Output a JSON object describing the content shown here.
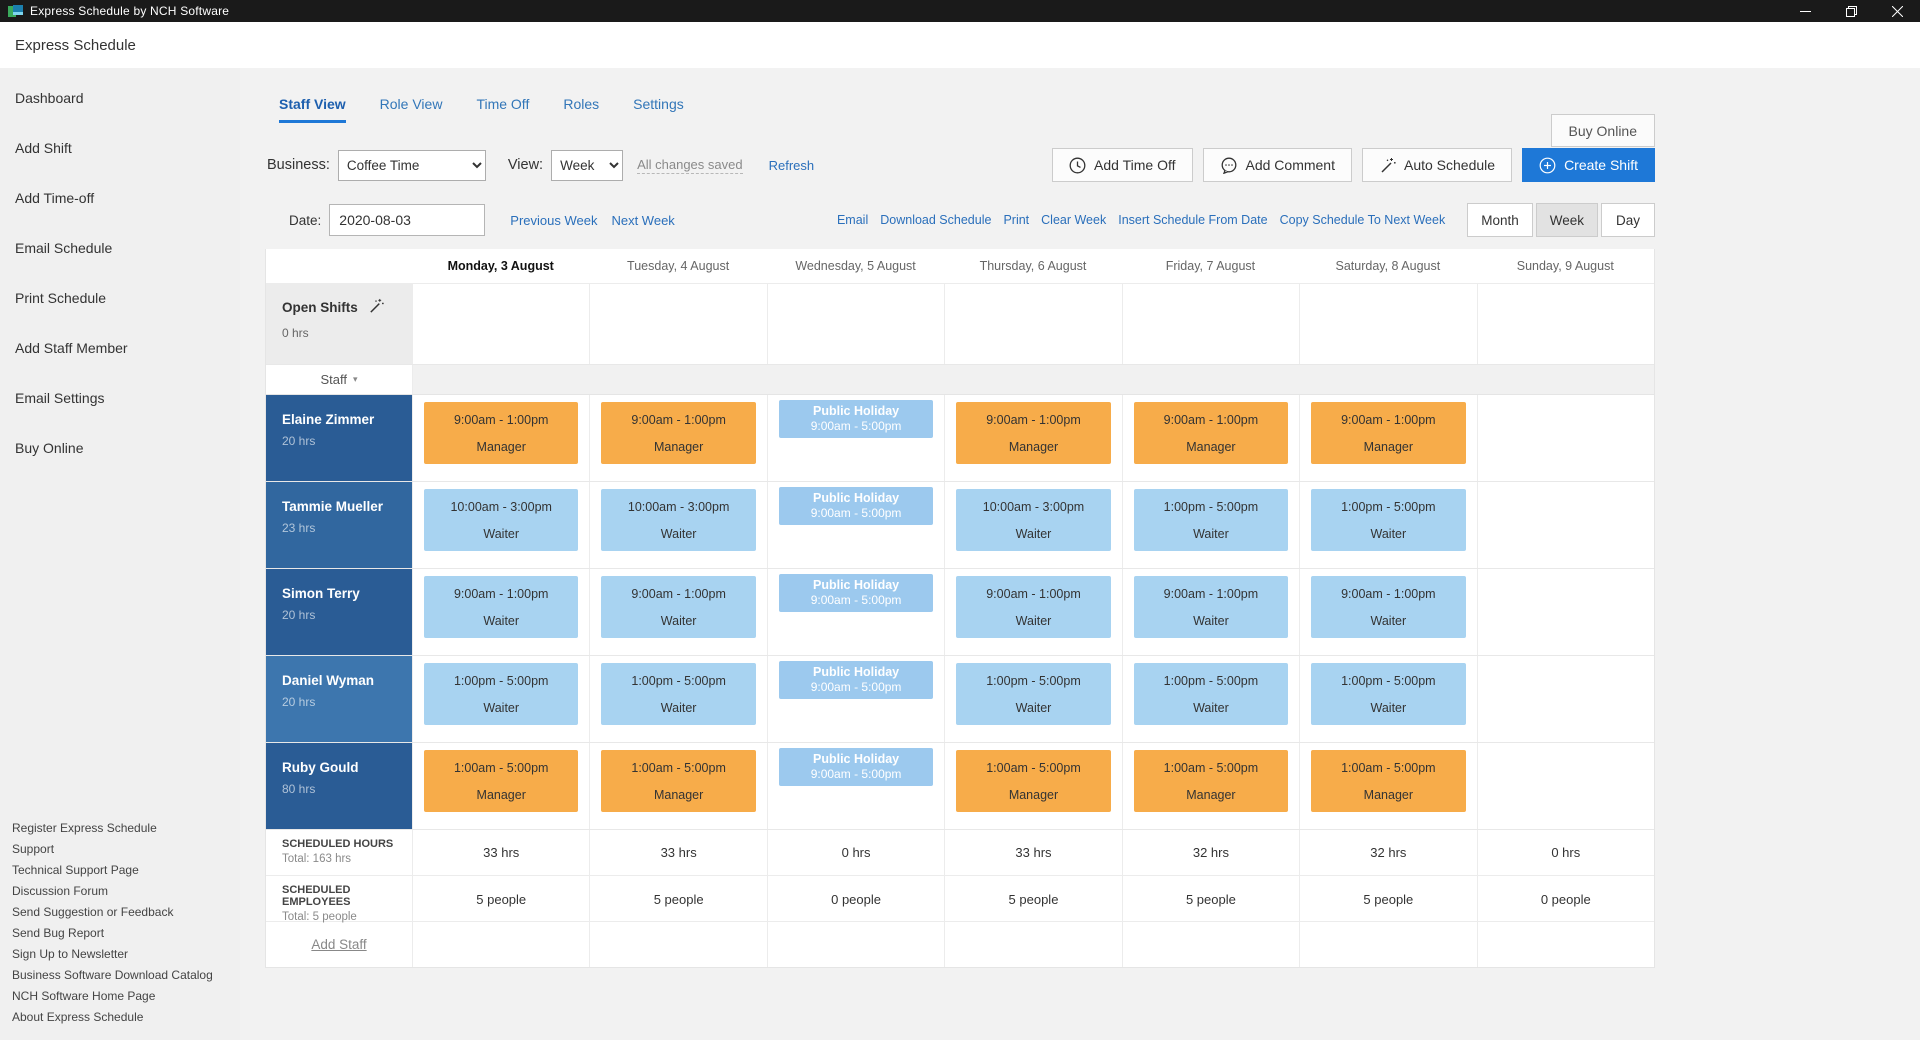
{
  "window": {
    "title": "Express Schedule by NCH Software"
  },
  "app_header": {
    "title": "Express Schedule"
  },
  "sidebar": {
    "items": [
      "Dashboard",
      "Add Shift",
      "Add Time-off",
      "Email Schedule",
      "Print Schedule",
      "Add Staff Member",
      "Email Settings",
      "Buy Online"
    ],
    "footer_links": [
      "Register Express Schedule",
      "Support",
      "Technical Support Page",
      "Discussion Forum",
      "Send Suggestion or Feedback",
      "Send Bug Report",
      "Sign Up to Newsletter",
      "Business Software Download Catalog",
      "NCH Software Home Page",
      "About Express Schedule"
    ]
  },
  "tabs": [
    {
      "label": "Staff View",
      "active": true
    },
    {
      "label": "Role View",
      "active": false
    },
    {
      "label": "Time Off",
      "active": false
    },
    {
      "label": "Roles",
      "active": false
    },
    {
      "label": "Settings",
      "active": false
    }
  ],
  "buy_online_button": "Buy Online",
  "toolbar": {
    "business_label": "Business:",
    "business_value": "Coffee Time",
    "view_label": "View:",
    "view_value": "Week",
    "status_text": "All changes saved",
    "refresh_link": "Refresh",
    "add_time_off": "Add Time Off",
    "add_comment": "Add Comment",
    "auto_schedule": "Auto Schedule",
    "create_shift": "Create Shift"
  },
  "date_bar": {
    "label": "Date:",
    "value": "2020-08-03",
    "prev_link": "Previous Week",
    "next_link": "Next Week",
    "action_links": [
      "Email",
      "Download Schedule",
      "Print",
      "Clear Week",
      "Insert Schedule From Date",
      "Copy Schedule To Next Week"
    ],
    "view_toggle": [
      {
        "label": "Month",
        "active": false
      },
      {
        "label": "Week",
        "active": true
      },
      {
        "label": "Day",
        "active": false
      }
    ]
  },
  "calendar": {
    "day_headers": [
      "Monday, 3 August",
      "Tuesday, 4 August",
      "Wednesday, 5 August",
      "Thursday, 6 August",
      "Friday, 7 August",
      "Saturday, 8 August",
      "Sunday, 9 August"
    ],
    "today_index": 0,
    "open_shifts": {
      "label": "Open Shifts",
      "hours": "0 hrs"
    },
    "staff_header_label": "Staff",
    "staff_rows": [
      {
        "name": "Elaine Zimmer",
        "hours": "20 hrs",
        "color": "#2A5C95",
        "shifts": [
          {
            "type": "manager",
            "time": "9:00am - 1:00pm",
            "role": "Manager"
          },
          {
            "type": "manager",
            "time": "9:00am - 1:00pm",
            "role": "Manager"
          },
          {
            "type": "holiday",
            "title": "Public Holiday",
            "time": "9:00am - 5:00pm"
          },
          {
            "type": "manager",
            "time": "9:00am - 1:00pm",
            "role": "Manager"
          },
          {
            "type": "manager",
            "time": "9:00am - 1:00pm",
            "role": "Manager"
          },
          {
            "type": "manager",
            "time": "9:00am - 1:00pm",
            "role": "Manager"
          },
          null
        ]
      },
      {
        "name": "Tammie Mueller",
        "hours": "23 hrs",
        "color": "#31679F",
        "shifts": [
          {
            "type": "waiter",
            "time": "10:00am - 3:00pm",
            "role": "Waiter"
          },
          {
            "type": "waiter",
            "time": "10:00am - 3:00pm",
            "role": "Waiter"
          },
          {
            "type": "holiday",
            "title": "Public Holiday",
            "time": "9:00am - 5:00pm"
          },
          {
            "type": "waiter",
            "time": "10:00am - 3:00pm",
            "role": "Waiter"
          },
          {
            "type": "waiter",
            "time": "1:00pm - 5:00pm",
            "role": "Waiter"
          },
          {
            "type": "waiter",
            "time": "1:00pm - 5:00pm",
            "role": "Waiter"
          },
          null
        ]
      },
      {
        "name": "Simon Terry",
        "hours": "20 hrs",
        "color": "#2A5C95",
        "shifts": [
          {
            "type": "waiter",
            "time": "9:00am - 1:00pm",
            "role": "Waiter"
          },
          {
            "type": "waiter",
            "time": "9:00am - 1:00pm",
            "role": "Waiter"
          },
          {
            "type": "holiday",
            "title": "Public Holiday",
            "time": "9:00am - 5:00pm"
          },
          {
            "type": "waiter",
            "time": "9:00am - 1:00pm",
            "role": "Waiter"
          },
          {
            "type": "waiter",
            "time": "9:00am - 1:00pm",
            "role": "Waiter"
          },
          {
            "type": "waiter",
            "time": "9:00am - 1:00pm",
            "role": "Waiter"
          },
          null
        ]
      },
      {
        "name": "Daniel Wyman",
        "hours": "20 hrs",
        "color": "#3D76AE",
        "shifts": [
          {
            "type": "waiter",
            "time": "1:00pm - 5:00pm",
            "role": "Waiter"
          },
          {
            "type": "waiter",
            "time": "1:00pm - 5:00pm",
            "role": "Waiter"
          },
          {
            "type": "holiday",
            "title": "Public Holiday",
            "time": "9:00am - 5:00pm"
          },
          {
            "type": "waiter",
            "time": "1:00pm - 5:00pm",
            "role": "Waiter"
          },
          {
            "type": "waiter",
            "time": "1:00pm - 5:00pm",
            "role": "Waiter"
          },
          {
            "type": "waiter",
            "time": "1:00pm - 5:00pm",
            "role": "Waiter"
          },
          null
        ]
      },
      {
        "name": "Ruby Gould",
        "hours": "80 hrs",
        "color": "#2A5C95",
        "shifts": [
          {
            "type": "manager",
            "time": "1:00am - 5:00pm",
            "role": "Manager"
          },
          {
            "type": "manager",
            "time": "1:00am - 5:00pm",
            "role": "Manager"
          },
          {
            "type": "holiday",
            "title": "Public Holiday",
            "time": "9:00am - 5:00pm"
          },
          {
            "type": "manager",
            "time": "1:00am - 5:00pm",
            "role": "Manager"
          },
          {
            "type": "manager",
            "time": "1:00am - 5:00pm",
            "role": "Manager"
          },
          {
            "type": "manager",
            "time": "1:00am - 5:00pm",
            "role": "Manager"
          },
          null
        ]
      }
    ],
    "summary_rows": [
      {
        "label": "SCHEDULED HOURS",
        "total": "Total: 163 hrs",
        "values": [
          "33 hrs",
          "33 hrs",
          "0 hrs",
          "33 hrs",
          "32 hrs",
          "32 hrs",
          "0 hrs"
        ]
      },
      {
        "label": "SCHEDULED EMPLOYEES",
        "total": "Total: 5 people",
        "values": [
          "5 people",
          "5 people",
          "0 people",
          "5 people",
          "5 people",
          "5 people",
          "0 people"
        ]
      }
    ],
    "add_staff_link": "Add Staff"
  },
  "colors": {
    "manager_shift": "#F7AC4A",
    "waiter_shift": "#A8D3F1",
    "holiday_shift": "#9CC9EE",
    "primary_button": "#1E78D7",
    "link_blue": "#2A6FBB"
  }
}
